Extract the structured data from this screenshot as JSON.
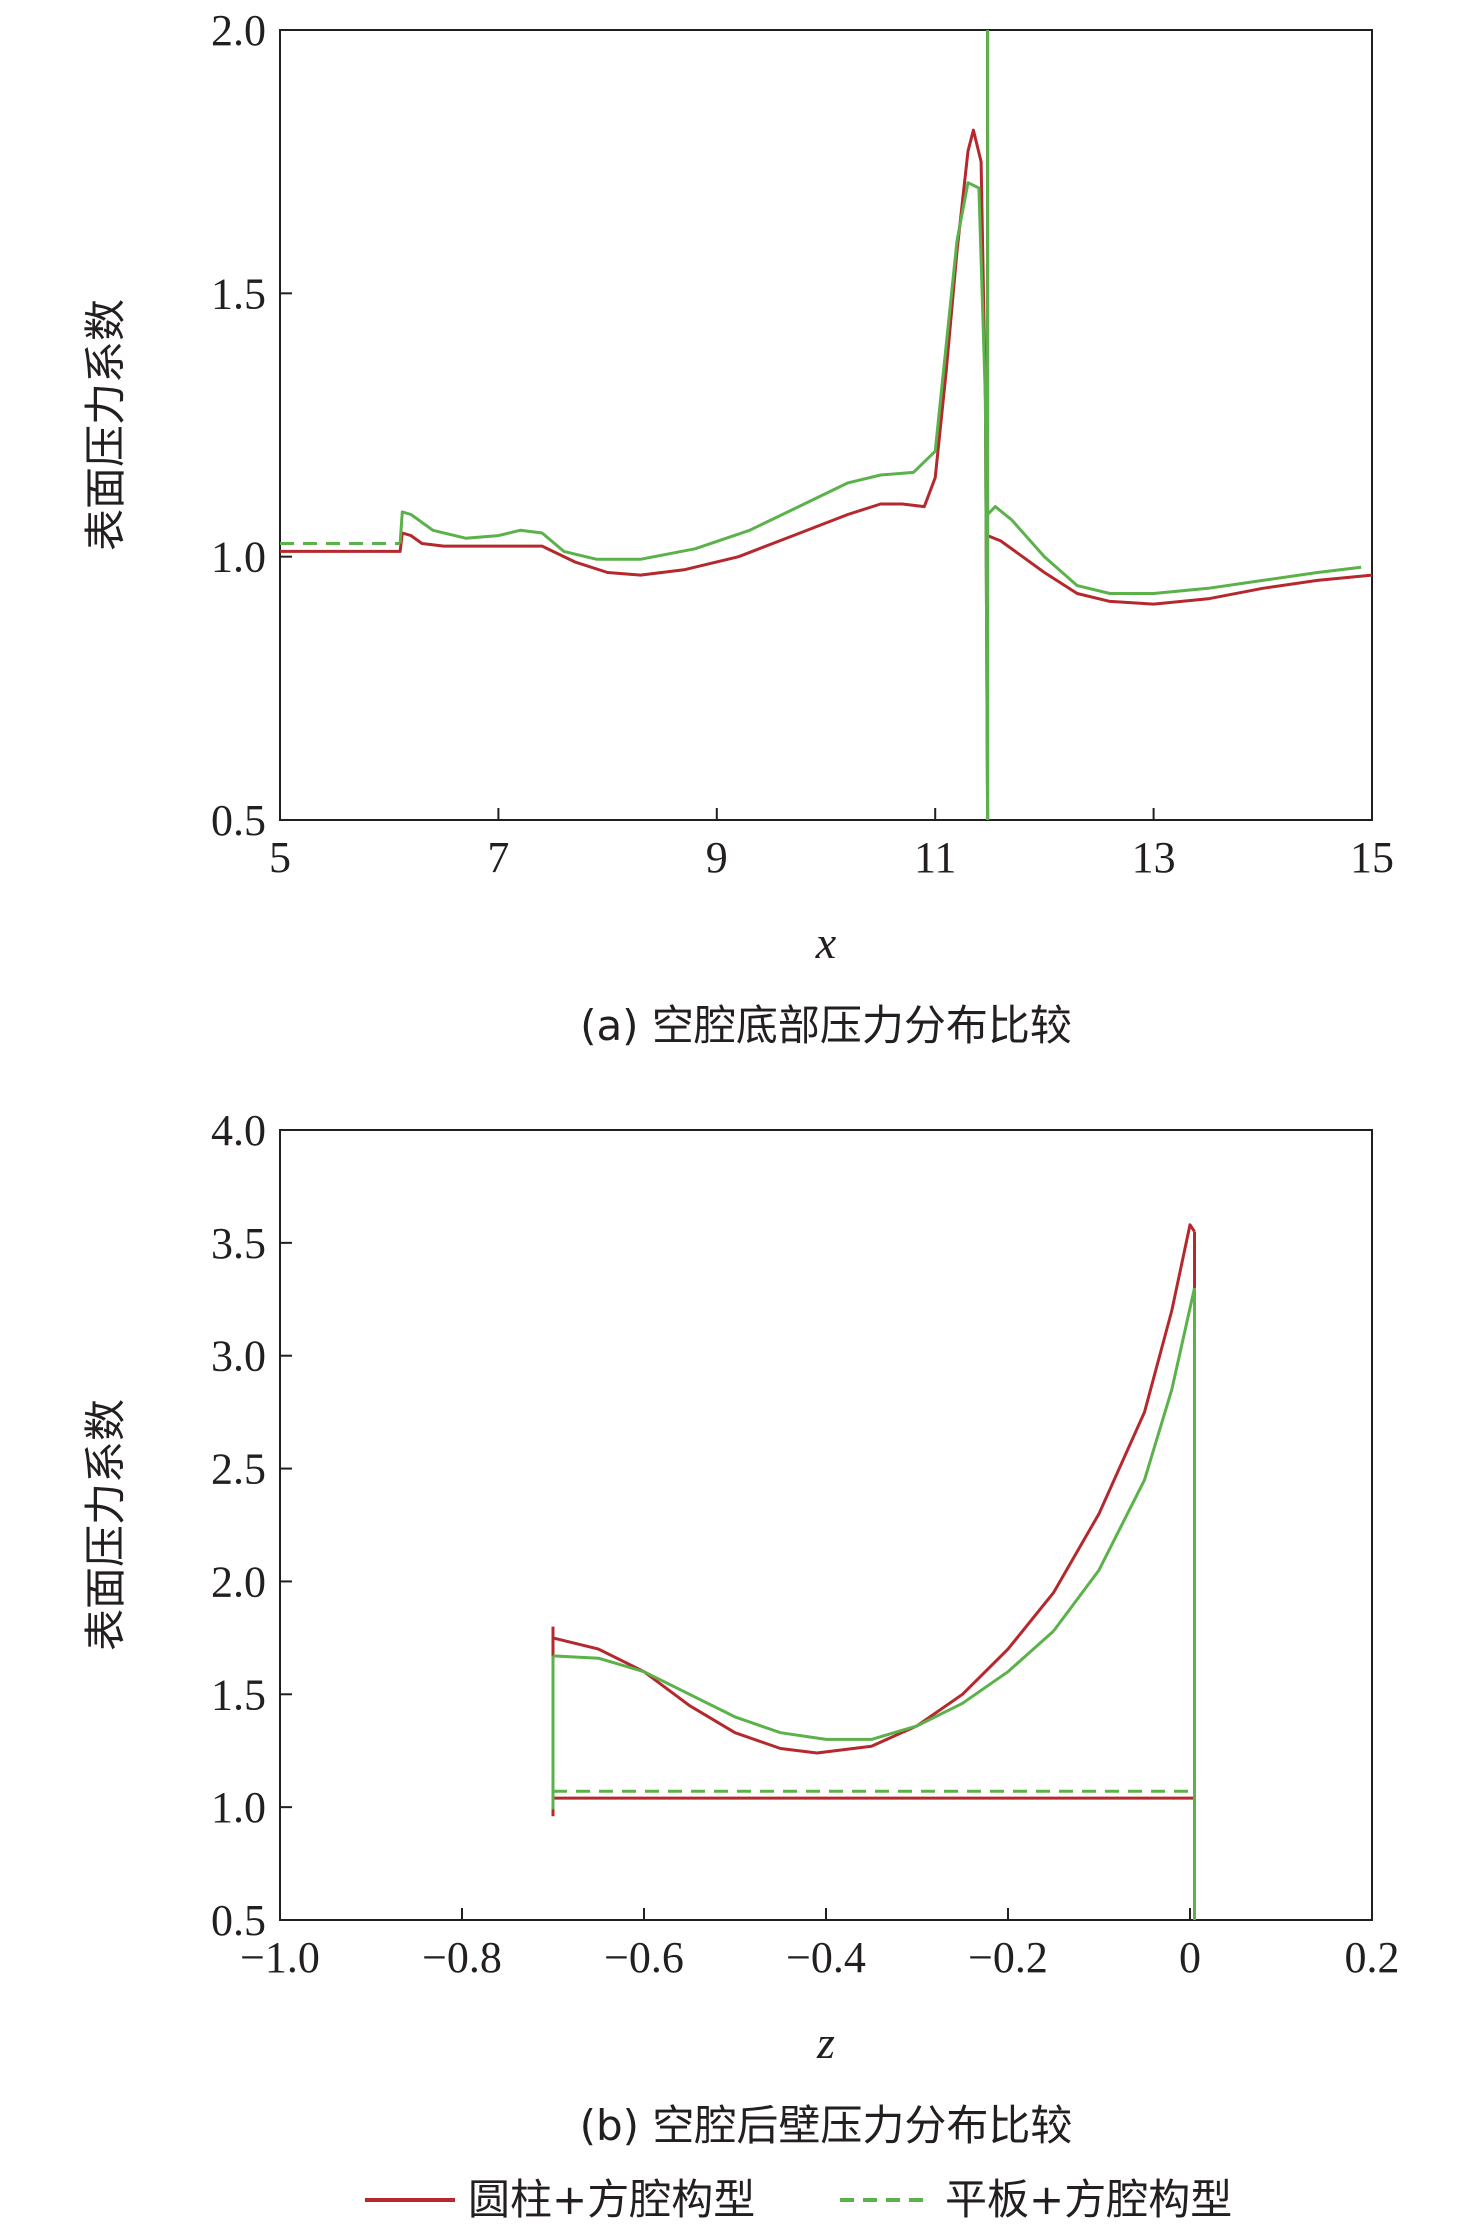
{
  "colors": {
    "series_solid": "#b5282e",
    "series_dashed": "#5bb14a",
    "axis": "#231f20"
  },
  "legend": [
    {
      "name": "圆柱+方腔构型",
      "style": "solid",
      "color": "#b5282e"
    },
    {
      "name": "平板+方腔构型",
      "style": "dashed",
      "color": "#5bb14a"
    }
  ],
  "chart_data": [
    {
      "type": "line",
      "caption": "(a) 空腔底部压力分布比较",
      "xlabel": "x",
      "ylabel": "表面压力系数",
      "xlim": [
        5,
        15
      ],
      "ylim": [
        0.5,
        2.0
      ],
      "xticks": [
        5,
        7,
        9,
        11,
        13,
        15
      ],
      "xtick_labels": [
        "5",
        "7",
        "9",
        "11",
        "13",
        "15"
      ],
      "yticks": [
        0.5,
        1.0,
        1.5,
        2.0
      ],
      "ytick_labels": [
        "0.5",
        "1.0",
        "1.5",
        "2.0"
      ],
      "grid": false,
      "series": [
        {
          "name": "圆柱+方腔构型",
          "style": "solid",
          "segments": [
            [
              [
                5.0,
                1.01
              ],
              [
                6.1,
                1.01
              ],
              [
                6.12,
                1.045
              ],
              [
                6.2,
                1.04
              ],
              [
                6.3,
                1.025
              ],
              [
                6.5,
                1.02
              ],
              [
                7.0,
                1.02
              ],
              [
                7.4,
                1.02
              ],
              [
                7.7,
                0.99
              ],
              [
                8.0,
                0.97
              ],
              [
                8.3,
                0.965
              ],
              [
                8.7,
                0.975
              ],
              [
                9.2,
                1.0
              ],
              [
                9.7,
                1.04
              ],
              [
                10.2,
                1.08
              ],
              [
                10.5,
                1.1
              ],
              [
                10.7,
                1.1
              ],
              [
                10.9,
                1.095
              ],
              [
                11.0,
                1.15
              ],
              [
                11.1,
                1.35
              ],
              [
                11.2,
                1.58
              ],
              [
                11.3,
                1.77
              ],
              [
                11.35,
                1.81
              ],
              [
                11.42,
                1.75
              ],
              [
                11.46,
                1.3
              ],
              [
                11.48,
                0.5
              ]
            ],
            [
              [
                11.48,
                2.0
              ],
              [
                11.48,
                0.5
              ]
            ],
            [
              [
                11.48,
                1.04
              ],
              [
                11.6,
                1.03
              ],
              [
                11.8,
                1.0
              ],
              [
                12.0,
                0.97
              ],
              [
                12.3,
                0.93
              ],
              [
                12.6,
                0.915
              ],
              [
                13.0,
                0.91
              ],
              [
                13.5,
                0.92
              ],
              [
                14.0,
                0.94
              ],
              [
                14.5,
                0.955
              ],
              [
                15.0,
                0.965
              ]
            ]
          ]
        },
        {
          "name": "平板+方腔构型",
          "style": "dashed",
          "segments": [
            [
              [
                5.0,
                1.025
              ],
              [
                6.1,
                1.025
              ]
            ],
            [
              [
                6.1,
                1.025
              ],
              [
                6.12,
                1.085
              ],
              [
                6.2,
                1.08
              ],
              [
                6.4,
                1.05
              ],
              [
                6.7,
                1.035
              ],
              [
                7.0,
                1.04
              ],
              [
                7.2,
                1.05
              ],
              [
                7.4,
                1.045
              ],
              [
                7.6,
                1.01
              ],
              [
                7.9,
                0.995
              ],
              [
                8.3,
                0.995
              ],
              [
                8.8,
                1.015
              ],
              [
                9.3,
                1.05
              ],
              [
                9.8,
                1.1
              ],
              [
                10.2,
                1.14
              ],
              [
                10.5,
                1.155
              ],
              [
                10.8,
                1.16
              ],
              [
                11.0,
                1.2
              ],
              [
                11.1,
                1.4
              ],
              [
                11.2,
                1.6
              ],
              [
                11.3,
                1.71
              ],
              [
                11.4,
                1.7
              ],
              [
                11.46,
                1.3
              ],
              [
                11.48,
                0.5
              ]
            ],
            [
              [
                11.48,
                0.5
              ],
              [
                11.48,
                2.0
              ]
            ],
            [
              [
                11.48,
                1.08
              ],
              [
                11.55,
                1.095
              ],
              [
                11.7,
                1.07
              ]
            ],
            [
              [
                11.7,
                1.07
              ],
              [
                12.0,
                1.0
              ],
              [
                12.3,
                0.945
              ],
              [
                12.6,
                0.93
              ],
              [
                13.0,
                0.93
              ],
              [
                13.5,
                0.94
              ],
              [
                14.0,
                0.955
              ],
              [
                14.5,
                0.97
              ],
              [
                14.9,
                0.98
              ]
            ]
          ]
        }
      ]
    },
    {
      "type": "line",
      "caption": "(b) 空腔后壁压力分布比较",
      "xlabel": "z",
      "ylabel": "表面压力系数",
      "xlim": [
        -1.0,
        0.2
      ],
      "ylim": [
        0.5,
        4.0
      ],
      "xticks": [
        -1.0,
        -0.8,
        -0.6,
        -0.4,
        -0.2,
        0.0,
        0.2
      ],
      "xtick_labels": [
        "−1.0",
        "−0.8",
        "−0.6",
        "−0.4",
        "−0.2",
        "0",
        "0.2"
      ],
      "yticks": [
        0.5,
        1.0,
        1.5,
        2.0,
        2.5,
        3.0,
        3.5,
        4.0
      ],
      "ytick_labels": [
        "0.5",
        "1.0",
        "1.5",
        "2.0",
        "2.5",
        "3.0",
        "3.5",
        "4.0"
      ],
      "grid": false,
      "series": [
        {
          "name": "圆柱+方腔构型",
          "style": "solid",
          "segments": [
            [
              [
                -0.7,
                0.96
              ],
              [
                -0.7,
                1.8
              ]
            ],
            [
              [
                -0.7,
                1.75
              ],
              [
                -0.65,
                1.7
              ],
              [
                -0.6,
                1.6
              ],
              [
                -0.55,
                1.45
              ],
              [
                -0.5,
                1.33
              ],
              [
                -0.45,
                1.26
              ],
              [
                -0.41,
                1.24
              ],
              [
                -0.35,
                1.27
              ],
              [
                -0.3,
                1.36
              ],
              [
                -0.25,
                1.5
              ],
              [
                -0.2,
                1.7
              ],
              [
                -0.15,
                1.95
              ],
              [
                -0.1,
                2.3
              ],
              [
                -0.05,
                2.75
              ],
              [
                -0.02,
                3.2
              ],
              [
                0.0,
                3.58
              ],
              [
                0.005,
                3.55
              ]
            ],
            [
              [
                0.005,
                3.55
              ],
              [
                0.005,
                0.5
              ]
            ],
            [
              [
                -0.7,
                1.04
              ],
              [
                -0.4,
                1.04
              ],
              [
                0.005,
                1.04
              ]
            ]
          ]
        },
        {
          "name": "平板+方腔构型",
          "style": "dashed",
          "segments": [
            [
              [
                -0.7,
                0.99
              ],
              [
                -0.7,
                1.67
              ]
            ],
            [
              [
                -0.7,
                1.67
              ],
              [
                -0.65,
                1.66
              ],
              [
                -0.6,
                1.6
              ],
              [
                -0.55,
                1.5
              ],
              [
                -0.5,
                1.4
              ],
              [
                -0.45,
                1.33
              ],
              [
                -0.4,
                1.3
              ],
              [
                -0.35,
                1.3
              ],
              [
                -0.3,
                1.36
              ],
              [
                -0.25,
                1.46
              ],
              [
                -0.2,
                1.6
              ],
              [
                -0.15,
                1.78
              ]
            ],
            [
              [
                -0.15,
                1.78
              ],
              [
                -0.1,
                2.05
              ],
              [
                -0.05,
                2.45
              ],
              [
                -0.02,
                2.85
              ],
              [
                0.005,
                3.3
              ]
            ],
            [
              [
                0.005,
                3.3
              ],
              [
                0.005,
                0.5
              ]
            ],
            [
              [
                -0.7,
                1.07
              ],
              [
                0.005,
                1.07
              ]
            ]
          ]
        }
      ]
    }
  ]
}
